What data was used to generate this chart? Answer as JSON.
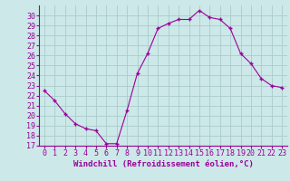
{
  "x": [
    0,
    1,
    2,
    3,
    4,
    5,
    6,
    7,
    8,
    9,
    10,
    11,
    12,
    13,
    14,
    15,
    16,
    17,
    18,
    19,
    20,
    21,
    22,
    23
  ],
  "y": [
    22.5,
    21.5,
    20.2,
    19.2,
    18.7,
    18.5,
    17.2,
    17.2,
    20.5,
    24.2,
    26.2,
    28.7,
    29.2,
    29.6,
    29.6,
    30.5,
    29.8,
    29.6,
    28.7,
    26.2,
    25.2,
    23.7,
    23.0,
    22.8
  ],
  "line_color": "#990099",
  "marker": "+",
  "bg_color": "#cce8e8",
  "grid_color": "#aacccc",
  "xlabel": "Windchill (Refroidissement éolien,°C)",
  "xlim": [
    -0.5,
    23.5
  ],
  "ylim": [
    17,
    31
  ],
  "yticks": [
    17,
    18,
    19,
    20,
    21,
    22,
    23,
    24,
    25,
    26,
    27,
    28,
    29,
    30
  ],
  "xticks": [
    0,
    1,
    2,
    3,
    4,
    5,
    6,
    7,
    8,
    9,
    10,
    11,
    12,
    13,
    14,
    15,
    16,
    17,
    18,
    19,
    20,
    21,
    22,
    23
  ],
  "xlabel_color": "#990099",
  "tick_color": "#990099",
  "label_fontsize": 6.5,
  "tick_fontsize": 6.0
}
